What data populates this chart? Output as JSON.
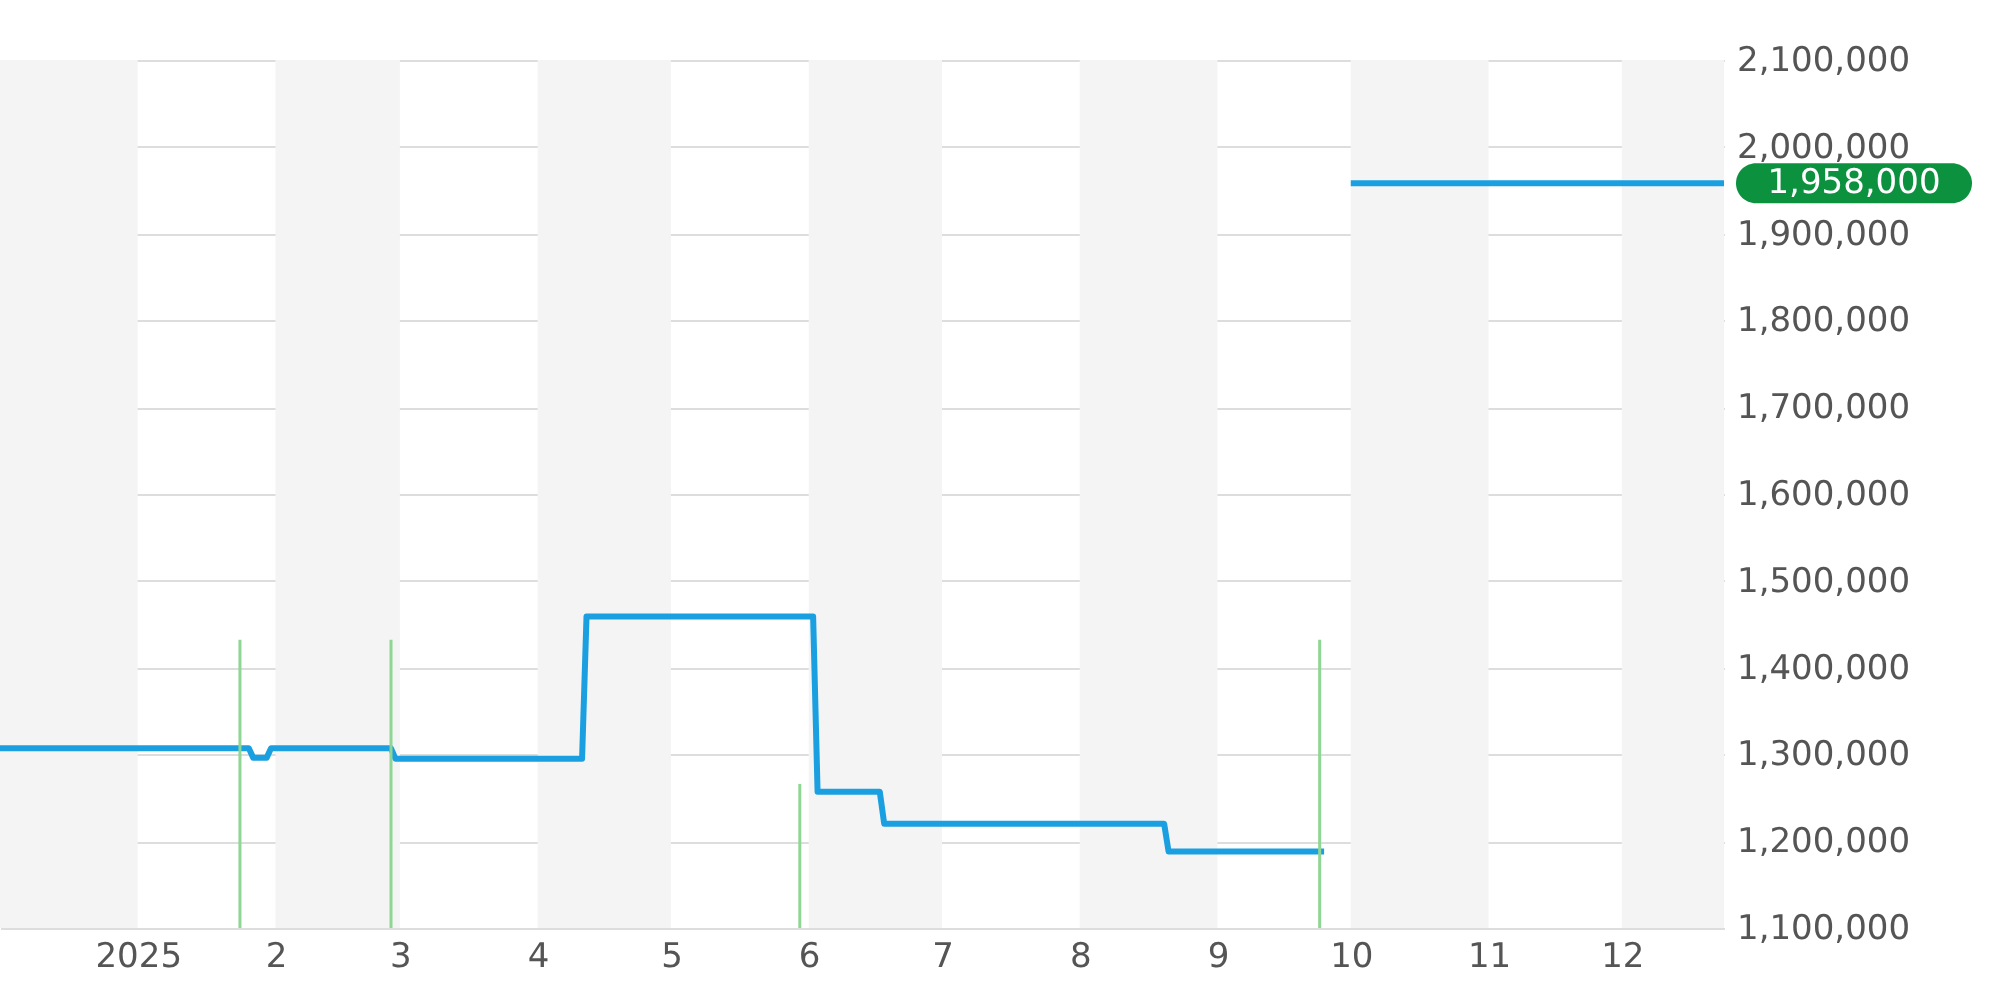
{
  "chart_data": {
    "type": "line",
    "xlim": [
      "2024-12-01",
      "2025-12-24"
    ],
    "xticks": [
      {
        "value": "2025-01-01",
        "label": "2025"
      },
      {
        "value": "2025-02-01",
        "label": "2"
      },
      {
        "value": "2025-03-01",
        "label": "3"
      },
      {
        "value": "2025-04-01",
        "label": "4"
      },
      {
        "value": "2025-05-01",
        "label": "5"
      },
      {
        "value": "2025-06-01",
        "label": "6"
      },
      {
        "value": "2025-07-01",
        "label": "7"
      },
      {
        "value": "2025-08-01",
        "label": "8"
      },
      {
        "value": "2025-09-01",
        "label": "9"
      },
      {
        "value": "2025-10-01",
        "label": "10"
      },
      {
        "value": "2025-11-01",
        "label": "11"
      },
      {
        "value": "2025-12-01",
        "label": "12"
      }
    ],
    "ylim": [
      1100000,
      2100000
    ],
    "yticks": [
      {
        "value": 1100000,
        "label": "1,100,000"
      },
      {
        "value": 1200000,
        "label": "1,200,000"
      },
      {
        "value": 1300000,
        "label": "1,300,000"
      },
      {
        "value": 1400000,
        "label": "1,400,000"
      },
      {
        "value": 1500000,
        "label": "1,500,000"
      },
      {
        "value": 1600000,
        "label": "1,600,000"
      },
      {
        "value": 1700000,
        "label": "1,700,000"
      },
      {
        "value": 1800000,
        "label": "1,800,000"
      },
      {
        "value": 1900000,
        "label": "1,900,000"
      },
      {
        "value": 2000000,
        "label": "2,000,000"
      },
      {
        "value": 2100000,
        "label": "2,100,000"
      }
    ],
    "grid": "y",
    "series": [
      {
        "color": "#1a9fe0",
        "x": [
          "2024-12-01",
          "2025-01-26",
          "2025-01-27",
          "2025-01-30",
          "2025-01-31",
          "2025-02-27",
          "2025-02-28",
          "2025-04-11",
          "2025-04-12",
          "2025-06-02",
          "2025-06-03",
          "2025-06-17",
          "2025-06-18",
          "2025-08-20",
          "2025-08-21",
          "2025-09-25",
          "2025-09-28",
          "2025-10-01",
          "2025-12-24"
        ],
        "values": [
          1307000,
          1307000,
          1296000,
          1296000,
          1307000,
          1307000,
          1295000,
          1295000,
          1459000,
          1459000,
          1257000,
          1257000,
          1220000,
          1220000,
          1188000,
          1188000,
          null,
          1958000,
          1958000
        ]
      },
      {
        "type": "bar",
        "color": "#8fd694",
        "x": [
          "2025-01-24",
          "2025-02-27",
          "2025-05-30",
          "2025-09-24"
        ],
        "values": [
          1432000,
          1432000,
          1266000,
          1432000
        ]
      }
    ],
    "bands": [
      {
        "axis": "x",
        "from": "2024-12-01",
        "to": "2025-01-01",
        "color": "#f4f4f4"
      },
      {
        "axis": "x",
        "from": "2025-02-01",
        "to": "2025-03-01",
        "color": "#f4f4f4"
      },
      {
        "axis": "x",
        "from": "2025-04-01",
        "to": "2025-05-01",
        "color": "#f4f4f4"
      },
      {
        "axis": "x",
        "from": "2025-06-01",
        "to": "2025-07-01",
        "color": "#f4f4f4"
      },
      {
        "axis": "x",
        "from": "2025-08-01",
        "to": "2025-09-01",
        "color": "#f4f4f4"
      },
      {
        "axis": "x",
        "from": "2025-10-01",
        "to": "2025-11-01",
        "color": "#f4f4f4"
      },
      {
        "axis": "x",
        "from": "2025-12-01",
        "to": "2025-12-24",
        "color": "#f4f4f4"
      }
    ],
    "annotations": [
      {
        "text": "1,958,000",
        "x": "2025-12-24",
        "y": 1958000
      }
    ]
  }
}
